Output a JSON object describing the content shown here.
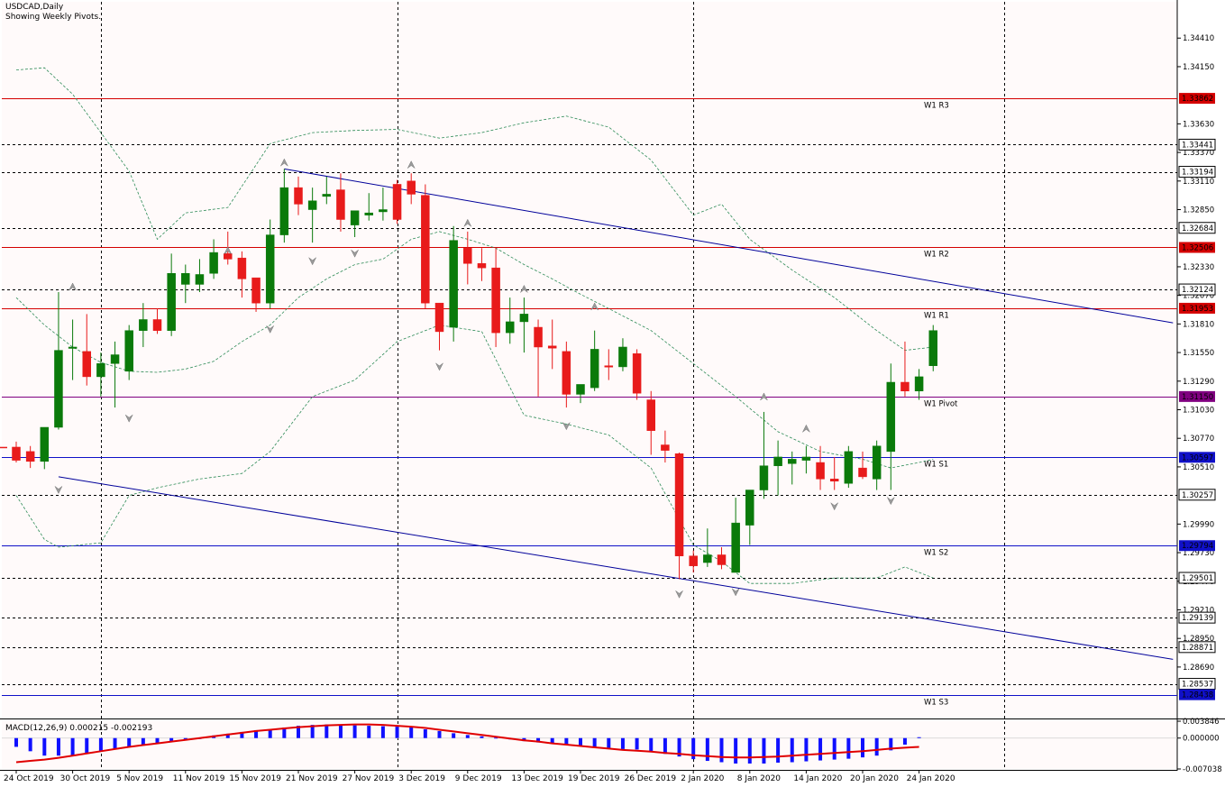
{
  "header": {
    "symbol_line": "USDCAD,Daily",
    "info_line": "Showing Weekly Pivots."
  },
  "colors": {
    "background": "#fffafa",
    "bull": "#0a7a0a",
    "bear": "#e81b1b",
    "resistance": "#d40000",
    "support": "#1010c8",
    "pivot": "#800080",
    "channel": "#00009a",
    "bands": "#2e8b57",
    "macd_hist": "#1010ff",
    "macd_signal": "#e00000"
  },
  "chart_data": [
    {
      "type": "candlestick",
      "title": "USDCAD,Daily",
      "subtitle": "Showing Weekly Pivots.",
      "ylim": [
        1.2823,
        1.3474
      ],
      "grid": true,
      "y_ticks": [
        "1.34410",
        "1.34150",
        "1.33630",
        "1.33370",
        "1.33110",
        "1.32850",
        "1.32330",
        "1.32070",
        "1.31810",
        "1.31550",
        "1.31290",
        "1.31030",
        "1.30770",
        "1.30510",
        "1.29990",
        "1.29730",
        "1.29470",
        "1.29210",
        "1.28950",
        "1.28690"
      ],
      "x_labels": [
        "24 Oct 2019",
        "30 Oct 2019",
        "5 Nov 2019",
        "11 Nov 2019",
        "15 Nov 2019",
        "21 Nov 2019",
        "27 Nov 2019",
        "3 Dec 2019",
        "9 Dec 2019",
        "13 Dec 2019",
        "19 Dec 2019",
        "26 Dec 2019",
        "2 Jan 2020",
        "8 Jan 2020",
        "14 Jan 2020",
        "20 Jan 2020",
        "24 Jan 2020"
      ],
      "x_label_index": [
        0,
        4,
        8,
        12,
        16,
        20,
        24,
        28,
        32,
        36,
        40,
        44,
        48,
        52,
        56,
        60,
        64
      ],
      "date_grid_index": [
        6,
        27,
        48,
        70
      ],
      "candles": [
        [
          1.3069,
          1.3074,
          1.3055,
          1.3057
        ],
        [
          1.3065,
          1.307,
          1.305,
          1.3056
        ],
        [
          1.3056,
          1.3085,
          1.3049,
          1.3087
        ],
        [
          1.3087,
          1.321,
          1.3085,
          1.3157
        ],
        [
          1.3159,
          1.3185,
          1.313,
          1.316
        ],
        [
          1.3156,
          1.319,
          1.3125,
          1.3133
        ],
        [
          1.3133,
          1.3155,
          1.3115,
          1.3145
        ],
        [
          1.3145,
          1.3165,
          1.3105,
          1.3153
        ],
        [
          1.3138,
          1.318,
          1.313,
          1.3175
        ],
        [
          1.3175,
          1.32,
          1.316,
          1.3185
        ],
        [
          1.3185,
          1.3195,
          1.3172,
          1.3175
        ],
        [
          1.3175,
          1.3245,
          1.317,
          1.3227
        ],
        [
          1.3217,
          1.3235,
          1.32,
          1.3227
        ],
        [
          1.3217,
          1.324,
          1.321,
          1.3226
        ],
        [
          1.3227,
          1.3258,
          1.3222,
          1.3246
        ],
        [
          1.3245,
          1.3265,
          1.3235,
          1.324
        ],
        [
          1.3241,
          1.3247,
          1.3205,
          1.3222
        ],
        [
          1.3223,
          1.322,
          1.3192,
          1.32
        ],
        [
          1.32,
          1.3276,
          1.3195,
          1.3262
        ],
        [
          1.3262,
          1.3322,
          1.3255,
          1.3305
        ],
        [
          1.3305,
          1.3315,
          1.328,
          1.329
        ],
        [
          1.3285,
          1.3305,
          1.3255,
          1.3293
        ],
        [
          1.3297,
          1.3315,
          1.329,
          1.3299
        ],
        [
          1.3303,
          1.3318,
          1.3265,
          1.3276
        ],
        [
          1.3271,
          1.328,
          1.326,
          1.3284
        ],
        [
          1.328,
          1.33,
          1.3275,
          1.3282
        ],
        [
          1.3283,
          1.3305,
          1.3275,
          1.3285
        ],
        [
          1.3308,
          1.3312,
          1.3272,
          1.3276
        ],
        [
          1.3311,
          1.3318,
          1.329,
          1.3299
        ],
        [
          1.3298,
          1.3308,
          1.3195,
          1.32
        ],
        [
          1.32,
          1.32,
          1.3157,
          1.3174
        ],
        [
          1.3178,
          1.327,
          1.3165,
          1.3257
        ],
        [
          1.325,
          1.3265,
          1.3217,
          1.3236
        ],
        [
          1.3236,
          1.325,
          1.322,
          1.3232
        ],
        [
          1.3232,
          1.325,
          1.316,
          1.3173
        ],
        [
          1.3173,
          1.3205,
          1.3163,
          1.3183
        ],
        [
          1.3183,
          1.3205,
          1.3155,
          1.319
        ],
        [
          1.3178,
          1.3185,
          1.3115,
          1.316
        ],
        [
          1.3161,
          1.3185,
          1.314,
          1.3159
        ],
        [
          1.3156,
          1.3165,
          1.3105,
          1.3117
        ],
        [
          1.3117,
          1.3125,
          1.3109,
          1.3126
        ],
        [
          1.3123,
          1.3175,
          1.312,
          1.3158
        ],
        [
          1.3143,
          1.3158,
          1.313,
          1.3142
        ],
        [
          1.3142,
          1.3168,
          1.3138,
          1.316
        ],
        [
          1.3154,
          1.3158,
          1.3112,
          1.3118
        ],
        [
          1.3112,
          1.312,
          1.3062,
          1.3084
        ],
        [
          1.3071,
          1.3084,
          1.3055,
          1.3066
        ],
        [
          1.3063,
          1.3064,
          1.2949,
          1.297
        ],
        [
          1.297,
          1.2975,
          1.2955,
          1.2961
        ],
        [
          1.2964,
          1.2995,
          1.296,
          1.2971
        ],
        [
          1.2971,
          1.2978,
          1.2958,
          1.2962
        ],
        [
          1.2955,
          1.3023,
          1.2955,
          1.3
        ],
        [
          1.2998,
          1.303,
          1.298,
          1.303
        ],
        [
          1.303,
          1.3101,
          1.3022,
          1.3052
        ],
        [
          1.3052,
          1.3075,
          1.3025,
          1.306
        ],
        [
          1.3054,
          1.3065,
          1.3035,
          1.3058
        ],
        [
          1.3057,
          1.307,
          1.3045,
          1.306
        ],
        [
          1.3055,
          1.307,
          1.303,
          1.304
        ],
        [
          1.304,
          1.306,
          1.303,
          1.3038
        ],
        [
          1.3036,
          1.307,
          1.3032,
          1.3065
        ],
        [
          1.305,
          1.3065,
          1.304,
          1.3042
        ],
        [
          1.304,
          1.3075,
          1.303,
          1.307
        ],
        [
          1.3065,
          1.3145,
          1.303,
          1.3128
        ],
        [
          1.3128,
          1.3165,
          1.3115,
          1.312
        ],
        [
          1.312,
          1.314,
          1.3112,
          1.3133
        ],
        [
          1.3143,
          1.318,
          1.3138,
          1.3175
        ]
      ],
      "pivot_levels": [
        {
          "name": "W1 R3",
          "value": 1.33862,
          "kind": "resistance"
        },
        {
          "name": "W1 R2",
          "value": 1.32506,
          "kind": "resistance"
        },
        {
          "name": "W1 R1",
          "value": 1.31953,
          "kind": "resistance"
        },
        {
          "name": "W1 Pivot",
          "value": 1.3115,
          "kind": "pivot"
        },
        {
          "name": "W1 S1",
          "value": 1.30597,
          "kind": "support"
        },
        {
          "name": "W1 S2",
          "value": 1.29794,
          "kind": "support"
        },
        {
          "name": "W1 S3",
          "value": 1.28438,
          "kind": "support"
        }
      ],
      "price_levels": [
        "1.33441",
        "1.33194",
        "1.32684",
        "1.32124",
        "1.30257",
        "1.29501",
        "1.29139",
        "1.28871",
        "1.28537"
      ],
      "price_levels_value": [
        1.33441,
        1.33194,
        1.32684,
        1.32124,
        1.30257,
        1.29501,
        1.29139,
        1.28871,
        1.28537
      ],
      "channel_lines": [
        {
          "name": "upper",
          "points": [
            [
              19,
              1.3322
            ],
            [
              82,
              1.3182
            ]
          ]
        },
        {
          "name": "lower",
          "points": [
            [
              3,
              1.3042
            ],
            [
              82,
              1.2876
            ]
          ]
        }
      ],
      "bands": {
        "upper": [
          [
            0,
            1.3412
          ],
          [
            2,
            1.3414
          ],
          [
            4,
            1.339
          ],
          [
            6,
            1.3355
          ],
          [
            8,
            1.332
          ],
          [
            10,
            1.3258
          ],
          [
            12,
            1.3282
          ],
          [
            15,
            1.3287
          ],
          [
            18,
            1.3345
          ],
          [
            21,
            1.3355
          ],
          [
            24,
            1.3357
          ],
          [
            27,
            1.3358
          ],
          [
            30,
            1.335
          ],
          [
            33,
            1.3355
          ],
          [
            36,
            1.3364
          ],
          [
            39,
            1.337
          ],
          [
            42,
            1.336
          ],
          [
            45,
            1.333
          ],
          [
            48,
            1.328
          ],
          [
            50,
            1.329
          ],
          [
            52,
            1.3258
          ],
          [
            55,
            1.323
          ],
          [
            58,
            1.3205
          ],
          [
            61,
            1.3175
          ],
          [
            63,
            1.3157
          ],
          [
            65,
            1.316
          ]
        ],
        "middle": [
          [
            0,
            1.3205
          ],
          [
            2,
            1.318
          ],
          [
            4,
            1.316
          ],
          [
            6,
            1.3146
          ],
          [
            8,
            1.3138
          ],
          [
            10,
            1.3137
          ],
          [
            12,
            1.314
          ],
          [
            14,
            1.3147
          ],
          [
            16,
            1.3165
          ],
          [
            18,
            1.318
          ],
          [
            20,
            1.3205
          ],
          [
            22,
            1.3222
          ],
          [
            24,
            1.3235
          ],
          [
            26,
            1.324
          ],
          [
            28,
            1.3258
          ],
          [
            30,
            1.3265
          ],
          [
            32,
            1.3258
          ],
          [
            34,
            1.325
          ],
          [
            36,
            1.3235
          ],
          [
            38,
            1.3222
          ],
          [
            40,
            1.3208
          ],
          [
            42,
            1.3195
          ],
          [
            45,
            1.3175
          ],
          [
            48,
            1.3145
          ],
          [
            51,
            1.3115
          ],
          [
            54,
            1.3083
          ],
          [
            57,
            1.3065
          ],
          [
            60,
            1.3058
          ],
          [
            62,
            1.305
          ],
          [
            64,
            1.3055
          ],
          [
            65,
            1.3058
          ]
        ],
        "lower": [
          [
            0,
            1.3025
          ],
          [
            2,
            1.2985
          ],
          [
            3,
            1.2978
          ],
          [
            6,
            1.2982
          ],
          [
            8,
            1.3025
          ],
          [
            10,
            1.3032
          ],
          [
            13,
            1.304
          ],
          [
            16,
            1.3045
          ],
          [
            18,
            1.3065
          ],
          [
            21,
            1.3115
          ],
          [
            24,
            1.313
          ],
          [
            27,
            1.3165
          ],
          [
            30,
            1.318
          ],
          [
            33,
            1.3174
          ],
          [
            36,
            1.3098
          ],
          [
            39,
            1.309
          ],
          [
            42,
            1.308
          ],
          [
            45,
            1.305
          ],
          [
            48,
            1.298
          ],
          [
            50,
            1.2965
          ],
          [
            52,
            1.2945
          ],
          [
            55,
            1.2945
          ],
          [
            58,
            1.295
          ],
          [
            61,
            1.295
          ],
          [
            63,
            1.296
          ],
          [
            65,
            1.295
          ]
        ]
      },
      "fractals_up": [
        [
          4,
          1.321
        ],
        [
          15,
          1.3243
        ],
        [
          19,
          1.3323
        ],
        [
          28,
          1.3321
        ],
        [
          32,
          1.3268
        ],
        [
          36,
          1.3208
        ],
        [
          41,
          1.3192
        ],
        [
          53,
          1.311
        ],
        [
          56,
          1.3081
        ]
      ],
      "fractals_down": [
        [
          3,
          1.3035
        ],
        [
          8,
          1.31
        ],
        [
          18,
          1.3181
        ],
        [
          21,
          1.3243
        ],
        [
          24,
          1.325
        ],
        [
          30,
          1.3147
        ],
        [
          39,
          1.3093
        ],
        [
          47,
          1.294
        ],
        [
          51,
          1.2942
        ],
        [
          58,
          1.302
        ],
        [
          62,
          1.3025
        ]
      ],
      "last_price_marker": 1.30686
    },
    {
      "type": "bar",
      "title": "MACD(12,26,9) 0.000215 -0.002193",
      "ylim": [
        -0.007038,
        0.003846
      ],
      "y_ticks": [
        "0.003846",
        "0.000000",
        "-0.007038"
      ],
      "histogram": [
        -0.002,
        -0.003,
        -0.004,
        -0.004,
        -0.004,
        -0.0035,
        -0.003,
        -0.0025,
        -0.002,
        -0.0015,
        -0.0012,
        -0.0008,
        -0.0004,
        0.0,
        0.0006,
        0.001,
        0.0014,
        0.0018,
        0.002,
        0.0024,
        0.0028,
        0.003,
        0.0031,
        0.003,
        0.0029,
        0.0028,
        0.0027,
        0.0026,
        0.0025,
        0.002,
        0.0016,
        0.0011,
        0.0007,
        0.0004,
        0.0001,
        -0.0003,
        -0.0007,
        -0.001,
        -0.0013,
        -0.0016,
        -0.0019,
        -0.0021,
        -0.0023,
        -0.0025,
        -0.0026,
        -0.003,
        -0.0036,
        -0.0042,
        -0.0048,
        -0.0052,
        -0.0055,
        -0.0058,
        -0.0058,
        -0.0058,
        -0.0056,
        -0.0055,
        -0.0053,
        -0.0051,
        -0.0049,
        -0.0047,
        -0.0044,
        -0.004,
        -0.0028,
        -0.0015,
        0.0002
      ],
      "signal": [
        -0.0055,
        -0.0052,
        -0.0049,
        -0.0045,
        -0.004,
        -0.0035,
        -0.003,
        -0.0025,
        -0.002,
        -0.0016,
        -0.0012,
        -0.0008,
        -0.0004,
        0.0,
        0.0004,
        0.0008,
        0.0012,
        0.0016,
        0.0019,
        0.0022,
        0.0025,
        0.0027,
        0.0029,
        0.003,
        0.0031,
        0.0031,
        0.003,
        0.0028,
        0.0026,
        0.0023,
        0.0019,
        0.0015,
        0.0011,
        0.0007,
        0.0003,
        -0.0001,
        -0.0005,
        -0.0008,
        -0.0012,
        -0.0015,
        -0.0018,
        -0.0021,
        -0.0024,
        -0.0027,
        -0.0029,
        -0.0031,
        -0.0034,
        -0.0036,
        -0.0039,
        -0.0041,
        -0.0043,
        -0.0044,
        -0.0044,
        -0.0043,
        -0.0042,
        -0.004,
        -0.0038,
        -0.0036,
        -0.0034,
        -0.0032,
        -0.003,
        -0.0027,
        -0.0024,
        -0.0022,
        -0.002
      ]
    }
  ]
}
